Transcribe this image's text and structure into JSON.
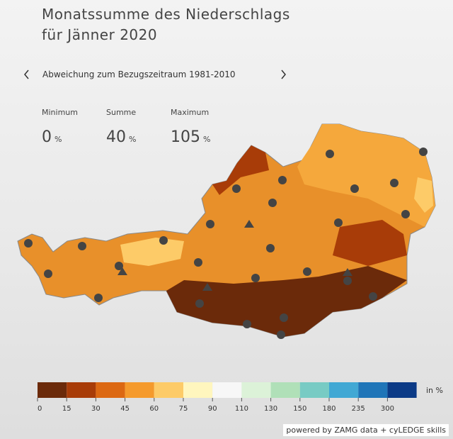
{
  "header": {
    "title_lines": [
      "Monatssumme des Niederschlags",
      "für Jänner 2020"
    ]
  },
  "nav": {
    "label": "Abweichung zum Bezugszeitraum 1981-2010"
  },
  "stats": [
    {
      "label": "Minimum",
      "value": 0,
      "unit": "%"
    },
    {
      "label": "Summe",
      "value": 40,
      "unit": "%"
    },
    {
      "label": "Maximum",
      "value": 105,
      "unit": "%"
    }
  ],
  "legend": {
    "unit_label": "in %",
    "colors": [
      "#6b2a0a",
      "#a83c08",
      "#dc6812",
      "#f59a2c",
      "#fdcb68",
      "#fff6be",
      "#f7f7f7",
      "#dcf2d8",
      "#b0e0b8",
      "#78cbc4",
      "#41a8d4",
      "#1f75b8",
      "#0b3a86"
    ],
    "ticks": [
      0,
      15,
      30,
      45,
      60,
      75,
      90,
      110,
      130,
      150,
      180,
      235,
      300
    ]
  },
  "credit": "powered by ZAMG data + cyLEDGE skills"
}
